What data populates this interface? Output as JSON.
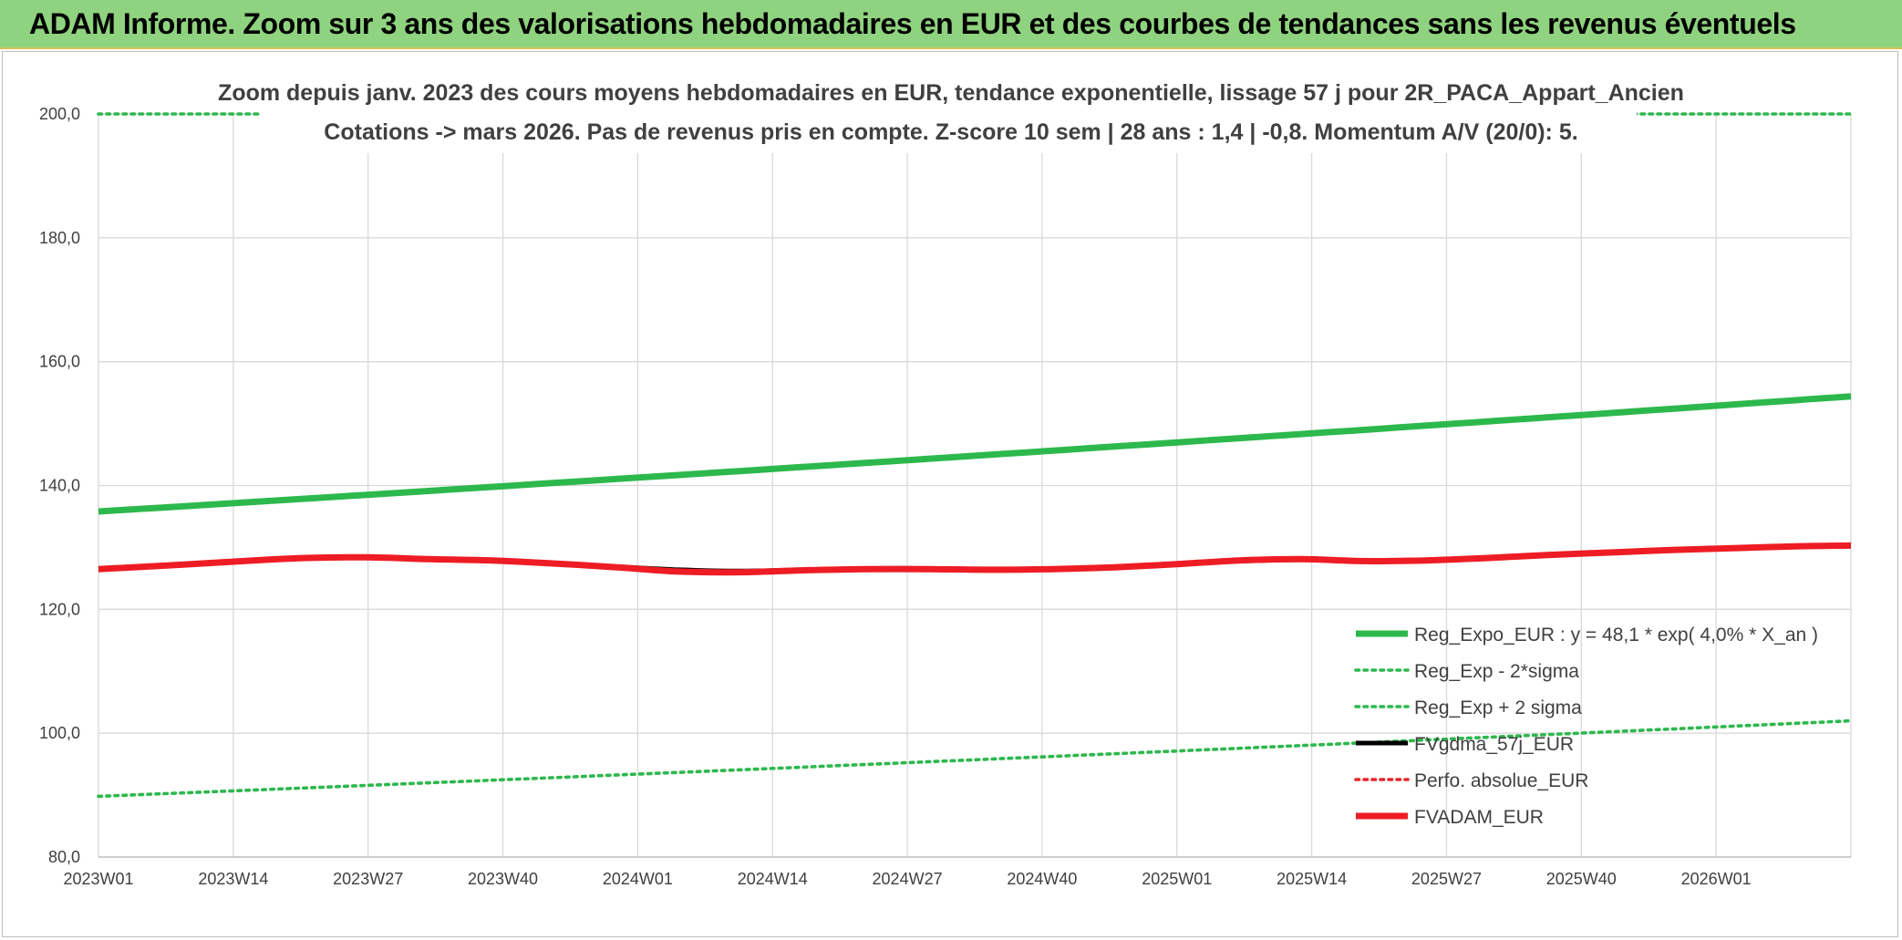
{
  "header": {
    "banner_title": "ADAM Informe. Zoom sur 3 ans des valorisations hebdomadaires en EUR et des courbes de tendances sans les revenus éventuels"
  },
  "colors": {
    "banner_bg": "#8fd27f",
    "regression": "#2db84d",
    "sigma_bands": "#2db84d",
    "fvgdma": "#000000",
    "perfo": "#e8262b",
    "fvadam": "#ee1c24"
  },
  "chart_data": {
    "type": "line",
    "title_lines": [
      "Zoom depuis janv. 2023 des cours moyens hebdomadaires en EUR, tendance exponentielle, lissage 57 j pour 2R_PACA_Appart_Ancien",
      "Cotations -> mars 2026. Pas de revenus pris en compte. Z-score 10 sem | 28 ans : 1,4 | -0,8. Momentum A/V (20/0): 5."
    ],
    "ylim": [
      80,
      200
    ],
    "yticks": [
      "80,0",
      "100,0",
      "120,0",
      "140,0",
      "160,0",
      "180,0",
      "200,0"
    ],
    "ytick_values": [
      80,
      100,
      120,
      140,
      160,
      180,
      200
    ],
    "xticks": [
      "2023W01",
      "2023W14",
      "2023W27",
      "2023W40",
      "2024W01",
      "2024W14",
      "2024W27",
      "2024W40",
      "2025W01",
      "2025W14",
      "2025W27",
      "2025W40",
      "2026W01"
    ],
    "x_range_weeks": [
      0,
      169
    ],
    "grid": true,
    "legend_position": "bottom-right",
    "series": [
      {
        "name": "Reg_Expo_EUR : y = 48,1 * exp( 4,0% *  X_an )",
        "style": "solid-thick",
        "color": "#2db84d",
        "x": [
          0,
          169
        ],
        "values": [
          135.8,
          154.4
        ],
        "shape": "exp"
      },
      {
        "name": "Reg_Exp - 2*sigma",
        "style": "dotted",
        "color": "#2db84d",
        "x": [
          0,
          169
        ],
        "values": [
          89.8,
          102.0
        ],
        "shape": "exp"
      },
      {
        "name": "Reg_Exp + 2 sigma",
        "style": "dotted",
        "color": "#2db84d",
        "x": [
          0,
          169
        ],
        "values": [
          200.0,
          200.0
        ],
        "shape": "linear"
      },
      {
        "name": "FVgdma_57j_EUR",
        "style": "solid",
        "color": "#000000",
        "x": [
          0,
          8,
          14,
          20,
          26,
          32,
          38,
          44,
          50,
          56,
          62,
          68,
          74,
          80,
          86,
          92,
          98,
          104,
          110,
          116,
          122,
          128,
          134,
          140,
          146,
          152,
          158,
          164,
          169
        ],
        "values": [
          126.6,
          127.3,
          127.9,
          128.3,
          128.3,
          128.1,
          127.9,
          127.4,
          126.9,
          126.4,
          126.2,
          126.4,
          126.6,
          126.6,
          126.4,
          126.5,
          126.8,
          127.3,
          127.8,
          128.0,
          127.9,
          128.0,
          128.4,
          128.9,
          129.3,
          129.7,
          129.9,
          130.2,
          130.3
        ]
      },
      {
        "name": "Perfo. absolue_EUR",
        "style": "dotted",
        "color": "#e8262b",
        "x": [],
        "values": []
      },
      {
        "name": "FVADAM_EUR",
        "style": "solid-thick",
        "color": "#ee1c24",
        "x": [
          0,
          8,
          14,
          20,
          26,
          32,
          38,
          44,
          50,
          56,
          62,
          68,
          74,
          80,
          86,
          92,
          98,
          104,
          110,
          116,
          122,
          128,
          134,
          140,
          146,
          152,
          158,
          164,
          169
        ],
        "values": [
          126.5,
          127.2,
          127.8,
          128.3,
          128.4,
          128.1,
          127.9,
          127.4,
          126.8,
          126.1,
          126.0,
          126.3,
          126.5,
          126.5,
          126.4,
          126.5,
          126.8,
          127.3,
          127.9,
          128.1,
          127.8,
          127.9,
          128.3,
          128.8,
          129.2,
          129.6,
          129.9,
          130.2,
          130.3
        ]
      }
    ]
  }
}
